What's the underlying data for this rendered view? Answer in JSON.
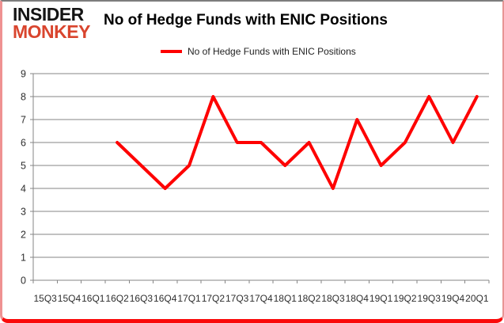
{
  "logo": {
    "line1": "INSIDER",
    "line2": "MONKEY"
  },
  "title": "No of Hedge Funds with ENIC Positions",
  "legend": {
    "label": "No of Hedge Funds with ENIC Positions",
    "color": "#fe0000"
  },
  "colors": {
    "line": "#fe0000",
    "grid": "#868686",
    "tick_text": "#2e2e2e",
    "logo_red": "#d9452e",
    "border_bottom_red": "#fa0a0a"
  },
  "chart_data": {
    "type": "line",
    "title": "No of Hedge Funds with ENIC Positions",
    "categories": [
      "15Q3",
      "15Q4",
      "16Q1",
      "16Q2",
      "16Q3",
      "16Q4",
      "17Q1",
      "17Q2",
      "17Q3",
      "17Q4",
      "18Q1",
      "18Q2",
      "18Q3",
      "18Q4",
      "19Q1",
      "19Q2",
      "19Q3",
      "19Q4",
      "20Q1"
    ],
    "series": [
      {
        "name": "No of Hedge Funds with ENIC Positions",
        "color": "#fe0000",
        "values": [
          null,
          null,
          null,
          6,
          5,
          4,
          5,
          8,
          6,
          6,
          5,
          6,
          4,
          7,
          5,
          6,
          8,
          6,
          8
        ]
      }
    ],
    "xlabel": "",
    "ylabel": "",
    "ylim": [
      0,
      9
    ],
    "ytick_interval": 1,
    "yticks": [
      0,
      1,
      2,
      3,
      4,
      5,
      6,
      7,
      8,
      9
    ],
    "grid": true,
    "legend_position": "top"
  }
}
